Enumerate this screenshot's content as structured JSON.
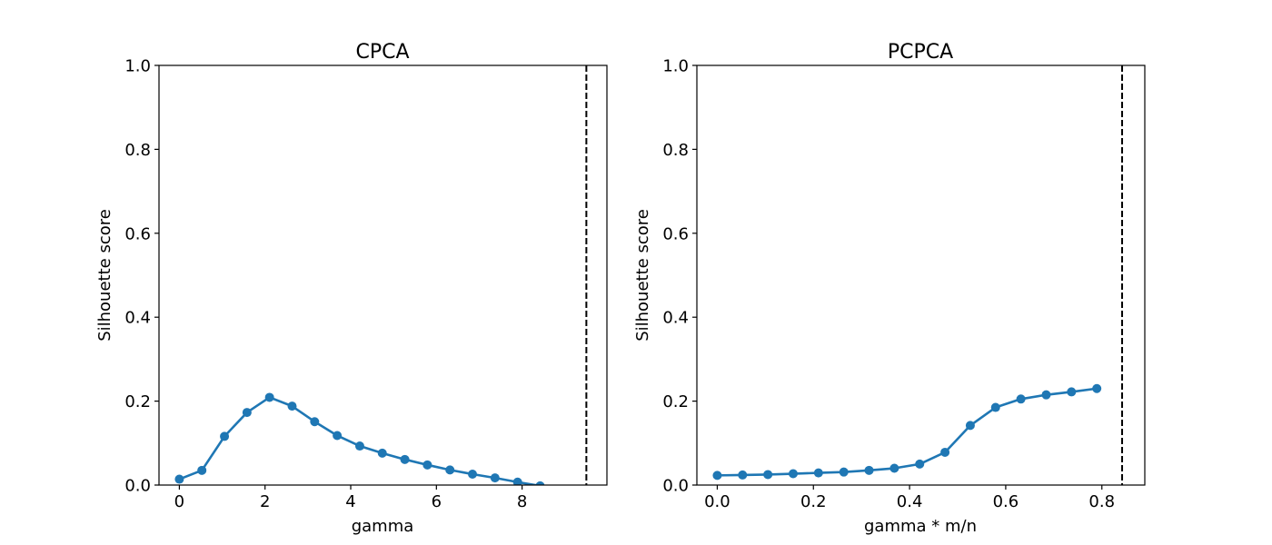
{
  "chart_data": [
    {
      "type": "line",
      "title": "CPCA",
      "xlabel": "gamma",
      "ylabel": "Silhouette score",
      "xlim": [
        -0.4751,
        9.98
      ],
      "ylim": [
        0,
        1
      ],
      "xticks": [
        0,
        2,
        4,
        6,
        8
      ],
      "xtick_labels": [
        "0",
        "2",
        "4",
        "6",
        "8"
      ],
      "yticks": [
        0,
        0.2,
        0.4,
        0.6,
        0.8,
        1.0
      ],
      "ytick_labels": [
        "0.0",
        "0.2",
        "0.4",
        "0.6",
        "0.8",
        "1.0"
      ],
      "grid": false,
      "color": "#1f77b4",
      "vline": {
        "x": 9.5,
        "style": "dashed",
        "color": "#000000"
      },
      "x": [
        0,
        0.526,
        1.053,
        1.579,
        2.105,
        2.632,
        3.158,
        3.684,
        4.211,
        4.737,
        5.263,
        5.789,
        6.316,
        6.842,
        7.368,
        7.895,
        8.421
      ],
      "y": [
        0.014,
        0.035,
        0.116,
        0.173,
        0.209,
        0.188,
        0.151,
        0.118,
        0.093,
        0.076,
        0.061,
        0.048,
        0.036,
        0.026,
        0.017,
        0.007,
        -0.002
      ]
    },
    {
      "type": "line",
      "title": "PCPCA",
      "xlabel": "gamma * m/n",
      "ylabel": "Silhouette score",
      "xlim": [
        -0.0424,
        0.8893
      ],
      "ylim": [
        0,
        1
      ],
      "xticks": [
        0,
        0.2,
        0.4,
        0.6,
        0.8
      ],
      "xtick_labels": [
        "0.0",
        "0.2",
        "0.4",
        "0.6",
        "0.8"
      ],
      "yticks": [
        0,
        0.2,
        0.4,
        0.6,
        0.8,
        1.0
      ],
      "ytick_labels": [
        "0.0",
        "0.2",
        "0.4",
        "0.6",
        "0.8",
        "1.0"
      ],
      "grid": false,
      "color": "#1f77b4",
      "vline": {
        "x": 0.8421,
        "style": "dashed",
        "color": "#000000"
      },
      "x": [
        0,
        0.0526,
        0.1053,
        0.1579,
        0.2105,
        0.2632,
        0.3158,
        0.3684,
        0.4211,
        0.4737,
        0.5263,
        0.5789,
        0.6316,
        0.6842,
        0.7368,
        0.7895
      ],
      "y": [
        0.023,
        0.024,
        0.025,
        0.027,
        0.029,
        0.031,
        0.035,
        0.04,
        0.05,
        0.078,
        0.142,
        0.185,
        0.205,
        0.215,
        0.222,
        0.23
      ]
    }
  ]
}
